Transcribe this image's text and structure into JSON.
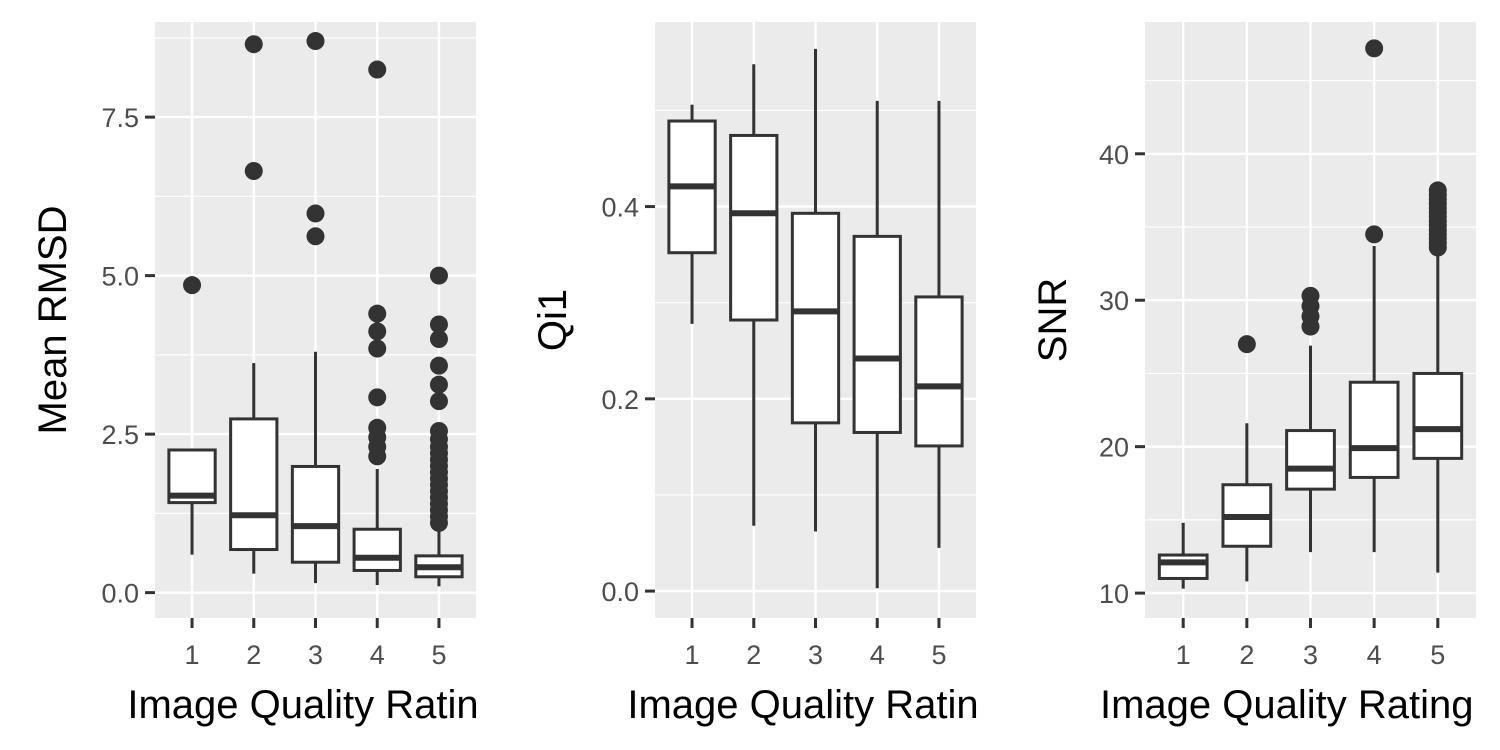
{
  "chart_data": [
    {
      "type": "boxplot",
      "xlabel": "Image Quality Ratin",
      "ylabel": "Mean RMSD",
      "categories": [
        "1",
        "2",
        "3",
        "4",
        "5"
      ],
      "yticks": [
        "0.0",
        "2.5",
        "5.0",
        "7.5"
      ],
      "ylim": [
        -0.4,
        9.0
      ],
      "boxes": [
        {
          "category": "1",
          "min": 0.6,
          "q1": 1.42,
          "median": 1.53,
          "q3": 2.25,
          "max": 2.25,
          "outliers": [
            4.85
          ]
        },
        {
          "category": "2",
          "min": 0.3,
          "q1": 0.68,
          "median": 1.22,
          "q3": 2.74,
          "max": 3.62,
          "outliers": [
            6.65,
            8.65
          ]
        },
        {
          "category": "3",
          "min": 0.15,
          "q1": 0.48,
          "median": 1.05,
          "q3": 1.99,
          "max": 3.8,
          "outliers": [
            5.62,
            5.98,
            8.7
          ]
        },
        {
          "category": "4",
          "min": 0.12,
          "q1": 0.35,
          "median": 0.55,
          "q3": 1.0,
          "max": 1.95,
          "outliers": [
            2.15,
            2.3,
            2.45,
            2.6,
            3.08,
            3.85,
            4.12,
            4.4,
            8.25
          ]
        },
        {
          "category": "5",
          "min": 0.1,
          "q1": 0.25,
          "median": 0.4,
          "q3": 0.58,
          "max": 1.05,
          "outliers": [
            1.1,
            1.2,
            1.3,
            1.4,
            1.5,
            1.6,
            1.7,
            1.8,
            1.9,
            2.0,
            2.1,
            2.2,
            2.3,
            2.42,
            2.55,
            3.02,
            3.28,
            3.58,
            4.0,
            4.23,
            5.0
          ]
        }
      ]
    },
    {
      "type": "boxplot",
      "xlabel": "Image Quality Ratin",
      "ylabel": "Qi1",
      "categories": [
        "1",
        "2",
        "3",
        "4",
        "5"
      ],
      "yticks": [
        "0.0",
        "0.2",
        "0.4"
      ],
      "ylim": [
        -0.028,
        0.592
      ],
      "boxes": [
        {
          "category": "1",
          "min": 0.278,
          "q1": 0.352,
          "median": 0.421,
          "q3": 0.489,
          "max": 0.506,
          "outliers": []
        },
        {
          "category": "2",
          "min": 0.068,
          "q1": 0.282,
          "median": 0.393,
          "q3": 0.474,
          "max": 0.548,
          "outliers": []
        },
        {
          "category": "3",
          "min": 0.062,
          "q1": 0.175,
          "median": 0.291,
          "q3": 0.393,
          "max": 0.564,
          "outliers": []
        },
        {
          "category": "4",
          "min": 0.003,
          "q1": 0.165,
          "median": 0.242,
          "q3": 0.369,
          "max": 0.51,
          "outliers": []
        },
        {
          "category": "5",
          "min": 0.045,
          "q1": 0.151,
          "median": 0.213,
          "q3": 0.306,
          "max": 0.51,
          "outliers": []
        }
      ]
    },
    {
      "type": "boxplot",
      "xlabel": "Image Quality Rating",
      "ylabel": "SNR",
      "categories": [
        "1",
        "2",
        "3",
        "4",
        "5"
      ],
      "yticks": [
        "10",
        "20",
        "30",
        "40"
      ],
      "ylim": [
        8.3,
        49.0
      ],
      "boxes": [
        {
          "category": "1",
          "min": 10.3,
          "q1": 11.0,
          "median": 12.1,
          "q3": 12.6,
          "max": 14.8,
          "outliers": []
        },
        {
          "category": "2",
          "min": 10.8,
          "q1": 13.2,
          "median": 15.2,
          "q3": 17.4,
          "max": 21.6,
          "outliers": [
            27.0
          ]
        },
        {
          "category": "3",
          "min": 12.8,
          "q1": 17.1,
          "median": 18.5,
          "q3": 21.1,
          "max": 26.9,
          "outliers": [
            28.2,
            28.9,
            29.6,
            30.3
          ]
        },
        {
          "category": "4",
          "min": 12.8,
          "q1": 17.9,
          "median": 19.9,
          "q3": 24.4,
          "max": 33.7,
          "outliers": [
            34.5,
            47.2
          ]
        },
        {
          "category": "5",
          "min": 11.4,
          "q1": 19.2,
          "median": 21.2,
          "q3": 25.0,
          "max": 33.4,
          "outliers": [
            33.6,
            33.9,
            34.2,
            34.5,
            34.8,
            35.1,
            35.4,
            35.7,
            36.0,
            36.3,
            36.6,
            36.9,
            37.2,
            37.5
          ]
        }
      ]
    }
  ]
}
